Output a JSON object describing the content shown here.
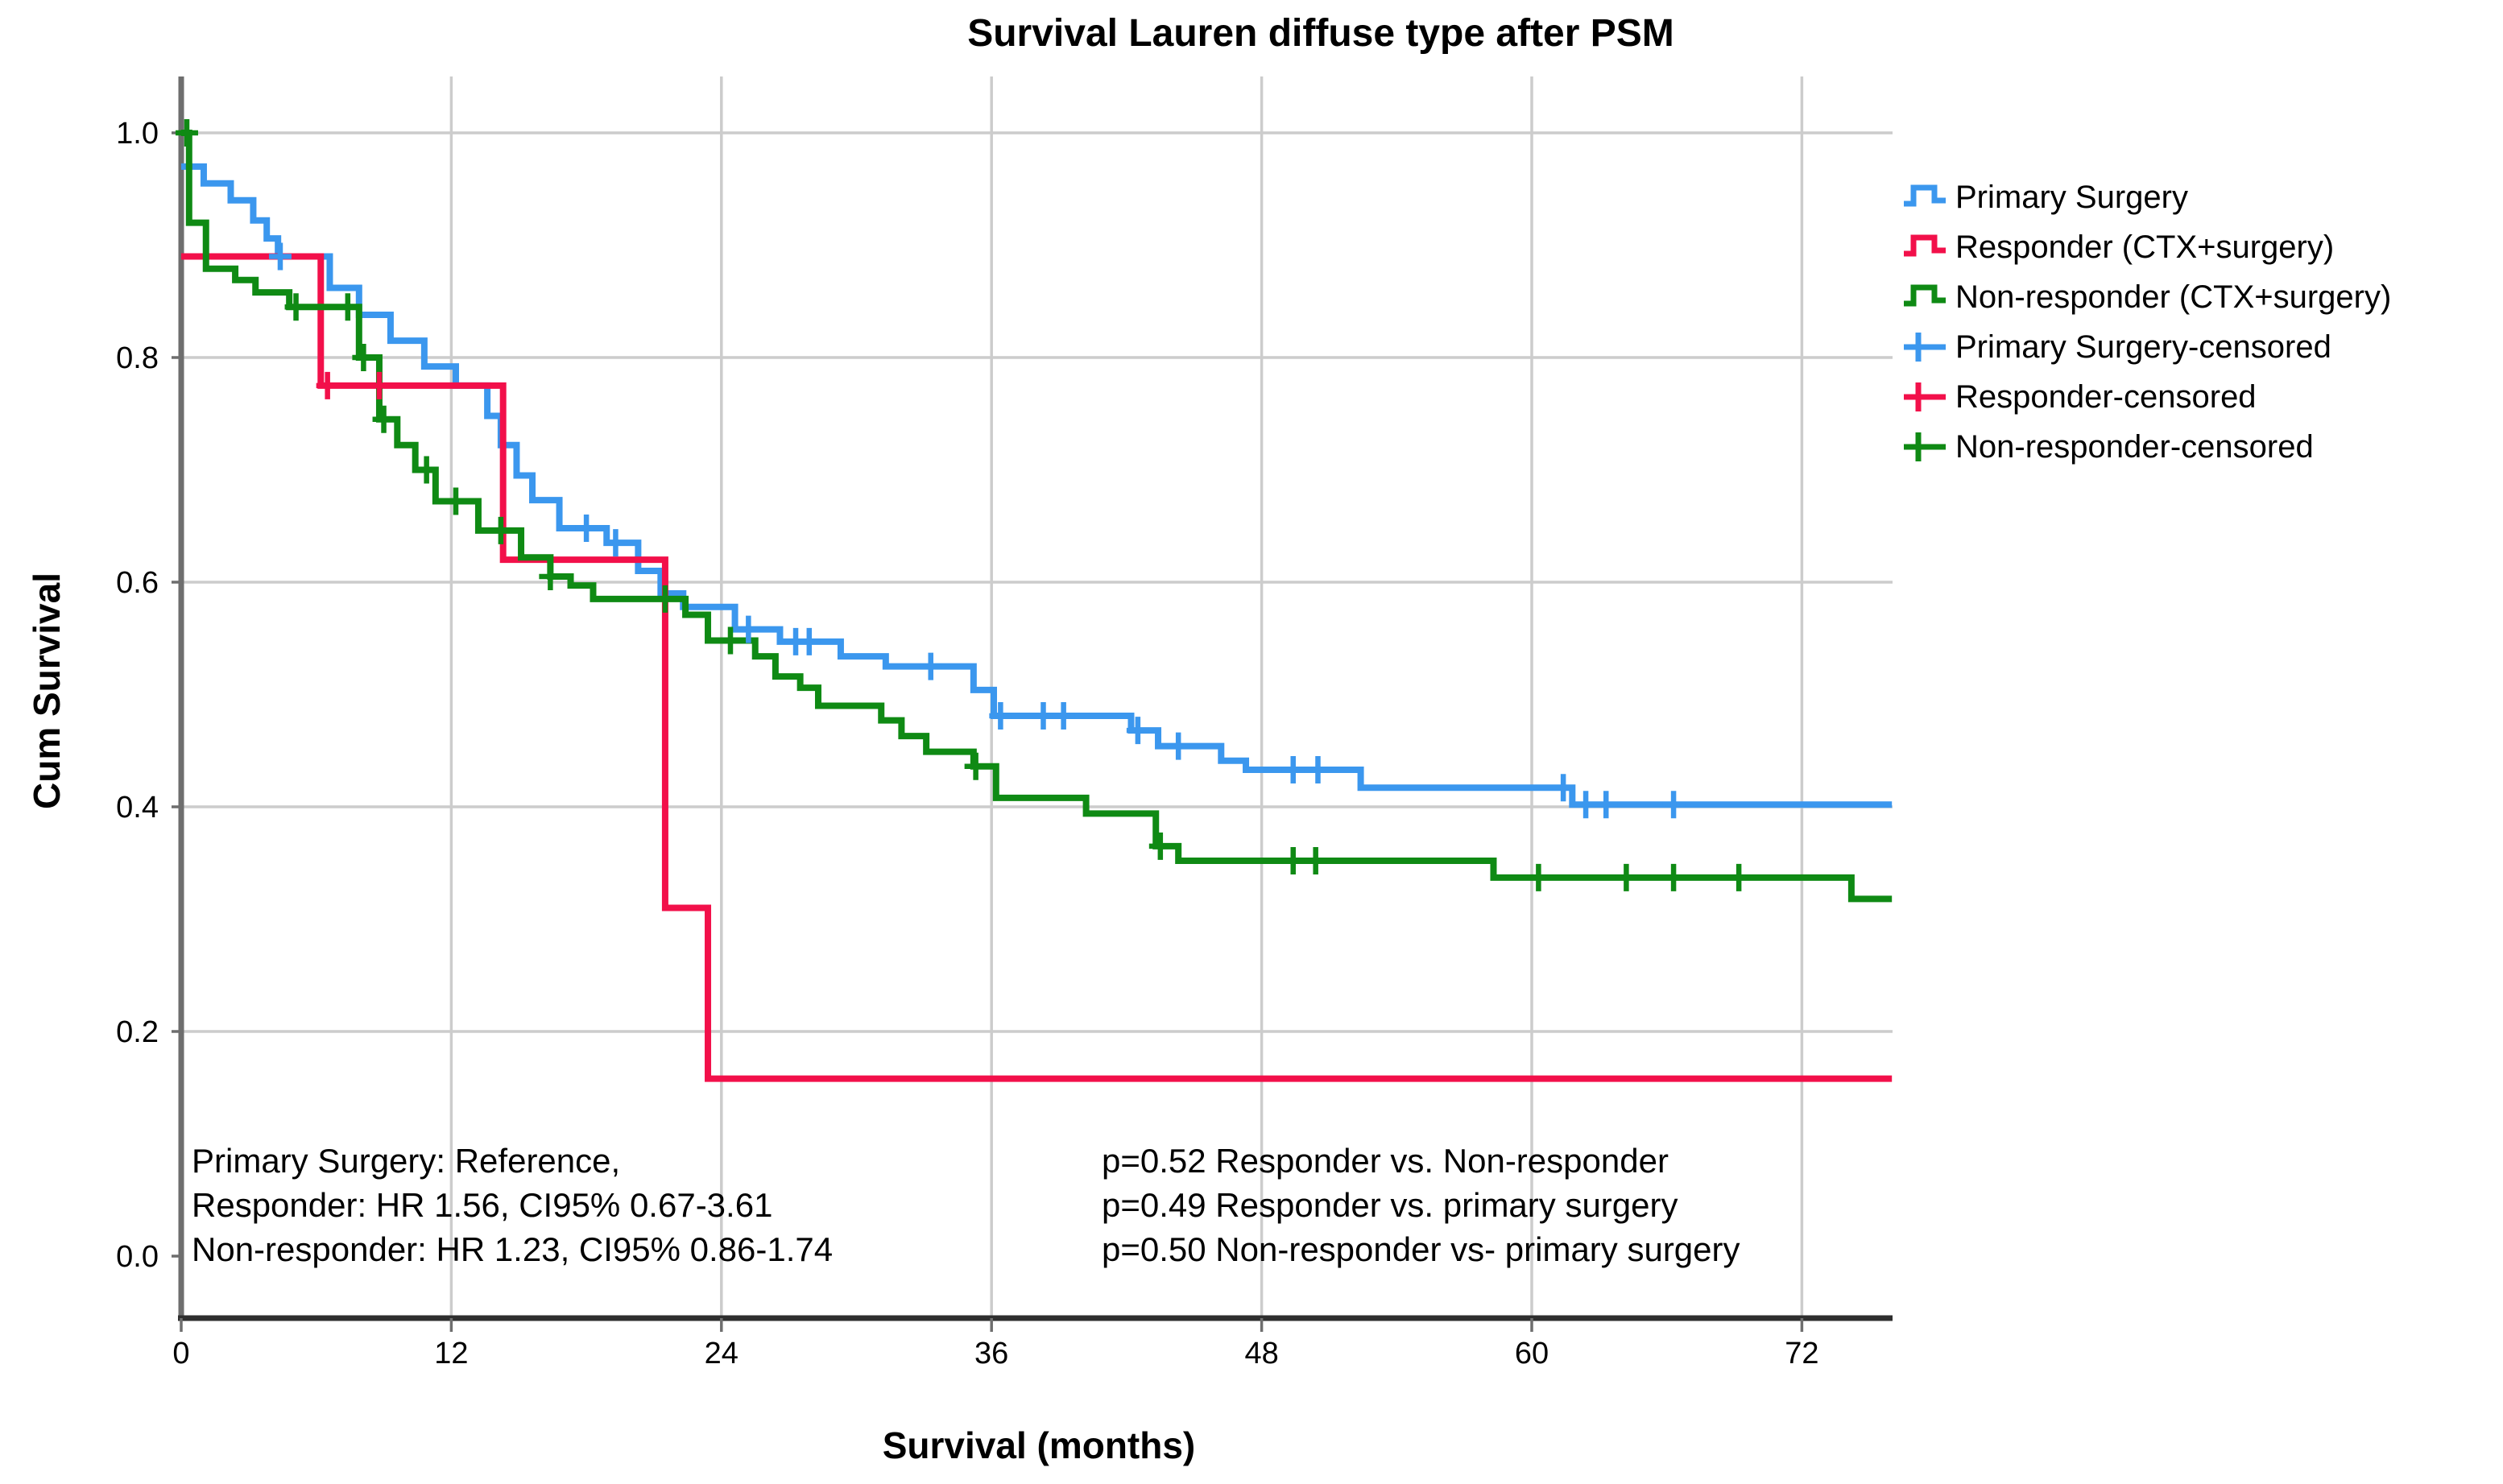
{
  "title": "Survival Lauren diffuse type after PSM",
  "axes": {
    "x_label": "Survival (months)",
    "y_label": "Cum Survival",
    "x_ticks": [
      "0",
      "12",
      "24",
      "36",
      "48",
      "60",
      "72"
    ],
    "y_ticks": [
      "1.0",
      "0.8",
      "0.6",
      "0.4",
      "0.2",
      "0.0"
    ]
  },
  "colors": {
    "blue": "#3b97ee",
    "red": "#f2104a",
    "green": "#0f8a14",
    "grid": "#cccccc",
    "axis_left": "#6e6e6e",
    "axis_bottom": "#2e2e2e",
    "text": "#000000"
  },
  "legend": {
    "items": [
      {
        "label": "Primary Surgery",
        "kind": "step-line",
        "color": "#3b97ee"
      },
      {
        "label": "Responder (CTX+surgery)",
        "kind": "step-line",
        "color": "#f2104a"
      },
      {
        "label": "Non-responder (CTX+surgery)",
        "kind": "step-line",
        "color": "#0f8a14"
      },
      {
        "label": "Primary Surgery-censored",
        "kind": "censor-plus",
        "color": "#3b97ee"
      },
      {
        "label": "Responder-censored",
        "kind": "censor-plus",
        "color": "#f2104a"
      },
      {
        "label": "Non-responder-censored",
        "kind": "censor-plus",
        "color": "#0f8a14"
      }
    ]
  },
  "annotations": {
    "left": [
      "Primary Surgery: Reference,",
      "Responder: HR 1.56, CI95% 0.67-3.61",
      "Non-responder: HR 1.23, CI95% 0.86-1.74"
    ],
    "right": [
      "p=0.52 Responder vs. Non-responder",
      "p=0.49 Responder vs. primary surgery",
      "p=0.50 Non-responder vs- primary surgery"
    ]
  },
  "chart_data": {
    "type": "line",
    "subtype": "kaplan-meier-step",
    "title": "Survival Lauren diffuse type after PSM",
    "xlabel": "Survival (months)",
    "ylabel": "Cum Survival",
    "xlim": [
      0,
      76
    ],
    "ylim": [
      0,
      1.0
    ],
    "xticks": [
      0,
      12,
      24,
      36,
      48,
      60,
      72
    ],
    "yticks": [
      1.0,
      0.8,
      0.6,
      0.4,
      0.2,
      0.0
    ],
    "grid": true,
    "legend_position": "right",
    "series": [
      {
        "name": "Primary Surgery",
        "color": "#3b97ee",
        "end_month": 76,
        "steps": [
          [
            0,
            0.97
          ],
          [
            1.0,
            0.955
          ],
          [
            2.2,
            0.94
          ],
          [
            3.2,
            0.922
          ],
          [
            3.8,
            0.906
          ],
          [
            4.3,
            0.89
          ],
          [
            6.6,
            0.862
          ],
          [
            7.9,
            0.838
          ],
          [
            9.3,
            0.815
          ],
          [
            10.8,
            0.792
          ],
          [
            12.2,
            0.775
          ],
          [
            13.6,
            0.748
          ],
          [
            14.2,
            0.722
          ],
          [
            14.9,
            0.695
          ],
          [
            15.6,
            0.673
          ],
          [
            16.8,
            0.648
          ],
          [
            18.9,
            0.635
          ],
          [
            20.3,
            0.61
          ],
          [
            21.3,
            0.59
          ],
          [
            22.3,
            0.578
          ],
          [
            24.6,
            0.558
          ],
          [
            26.6,
            0.547
          ],
          [
            29.3,
            0.534
          ],
          [
            31.3,
            0.525
          ],
          [
            35.2,
            0.504
          ],
          [
            36.1,
            0.481
          ],
          [
            42.2,
            0.468
          ],
          [
            43.4,
            0.454
          ],
          [
            46.2,
            0.441
          ],
          [
            47.3,
            0.433
          ],
          [
            52.4,
            0.417
          ],
          [
            61.8,
            0.402
          ]
        ],
        "censored": [
          [
            4.4,
            0.89
          ],
          [
            18.0,
            0.648
          ],
          [
            19.3,
            0.635
          ],
          [
            25.2,
            0.558
          ],
          [
            27.3,
            0.547
          ],
          [
            27.9,
            0.547
          ],
          [
            33.3,
            0.525
          ],
          [
            36.4,
            0.481
          ],
          [
            38.3,
            0.481
          ],
          [
            39.2,
            0.481
          ],
          [
            42.5,
            0.468
          ],
          [
            44.3,
            0.454
          ],
          [
            49.4,
            0.433
          ],
          [
            50.5,
            0.433
          ],
          [
            61.4,
            0.417
          ],
          [
            62.4,
            0.402
          ],
          [
            63.3,
            0.402
          ],
          [
            66.3,
            0.402
          ]
        ]
      },
      {
        "name": "Responder (CTX+surgery)",
        "color": "#f2104a",
        "end_month": 76,
        "steps": [
          [
            0,
            0.89
          ],
          [
            6.2,
            0.775
          ],
          [
            14.3,
            0.62
          ],
          [
            21.5,
            0.31
          ],
          [
            23.4,
            0.158
          ]
        ],
        "censored": [
          [
            6.5,
            0.775
          ],
          [
            8.8,
            0.775
          ]
        ]
      },
      {
        "name": "Non-responder (CTX+surgery)",
        "color": "#0f8a14",
        "end_month": 76,
        "steps": [
          [
            0,
            1.0
          ],
          [
            0.35,
            0.92
          ],
          [
            1.1,
            0.879
          ],
          [
            2.4,
            0.869
          ],
          [
            3.3,
            0.858
          ],
          [
            4.8,
            0.845
          ],
          [
            7.9,
            0.8
          ],
          [
            8.8,
            0.745
          ],
          [
            9.6,
            0.722
          ],
          [
            10.4,
            0.7
          ],
          [
            11.3,
            0.672
          ],
          [
            13.2,
            0.646
          ],
          [
            15.1,
            0.622
          ],
          [
            16.4,
            0.605
          ],
          [
            17.3,
            0.597
          ],
          [
            18.3,
            0.585
          ],
          [
            22.4,
            0.571
          ],
          [
            23.4,
            0.548
          ],
          [
            25.5,
            0.534
          ],
          [
            26.4,
            0.516
          ],
          [
            27.5,
            0.506
          ],
          [
            28.3,
            0.49
          ],
          [
            31.1,
            0.477
          ],
          [
            32.0,
            0.463
          ],
          [
            33.1,
            0.449
          ],
          [
            35.2,
            0.436
          ],
          [
            36.2,
            0.408
          ],
          [
            40.2,
            0.394
          ],
          [
            43.3,
            0.365
          ],
          [
            44.3,
            0.352
          ],
          [
            58.3,
            0.337
          ],
          [
            74.2,
            0.318
          ]
        ],
        "censored": [
          [
            0.25,
            1.0
          ],
          [
            5.1,
            0.845
          ],
          [
            7.4,
            0.845
          ],
          [
            8.1,
            0.8
          ],
          [
            9.0,
            0.745
          ],
          [
            10.9,
            0.7
          ],
          [
            12.2,
            0.672
          ],
          [
            14.2,
            0.646
          ],
          [
            16.4,
            0.605
          ],
          [
            21.5,
            0.585
          ],
          [
            24.4,
            0.548
          ],
          [
            35.3,
            0.436
          ],
          [
            43.5,
            0.365
          ],
          [
            49.4,
            0.352
          ],
          [
            50.4,
            0.352
          ],
          [
            60.3,
            0.337
          ],
          [
            64.2,
            0.337
          ],
          [
            66.3,
            0.337
          ],
          [
            69.2,
            0.337
          ]
        ]
      }
    ]
  }
}
